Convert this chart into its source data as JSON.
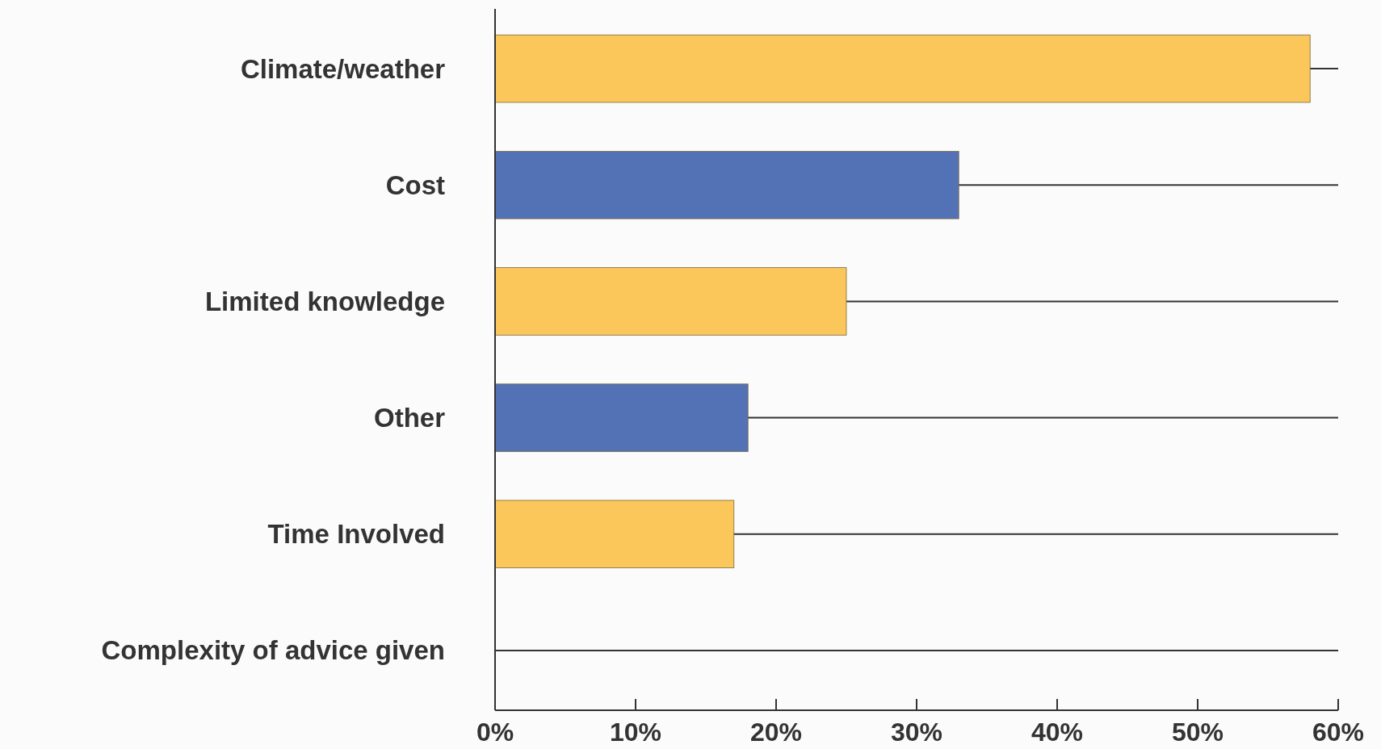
{
  "chart_data": {
    "type": "bar",
    "orientation": "horizontal",
    "categories": [
      "Climate/weather",
      "Cost",
      "Limited knowledge",
      "Other",
      "Time Involved",
      "Complexity of advice given"
    ],
    "values": [
      58,
      33,
      25,
      18,
      17,
      0
    ],
    "colors": [
      "#fbc65a",
      "#5371b5",
      "#fbc65a",
      "#5371b5",
      "#fbc65a",
      "#5371b5"
    ],
    "xlim": [
      0,
      60
    ],
    "xticks": [
      {
        "value": 0,
        "label": "0%"
      },
      {
        "value": 10,
        "label": "10%"
      },
      {
        "value": 20,
        "label": "20%"
      },
      {
        "value": 30,
        "label": "30%"
      },
      {
        "value": 40,
        "label": "40%"
      },
      {
        "value": 50,
        "label": "50%"
      },
      {
        "value": 60,
        "label": "60%"
      }
    ],
    "grid": "y"
  }
}
